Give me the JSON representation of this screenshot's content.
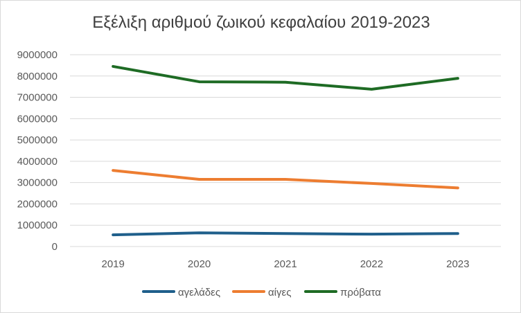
{
  "chart_data": {
    "type": "line",
    "title": "Εξέλιξη αριθμού ζωικού κεφαλαίου 2019-2023",
    "xlabel": "",
    "ylabel": "",
    "categories": [
      "2019",
      "2020",
      "2021",
      "2022",
      "2023"
    ],
    "ylim": [
      0,
      9000000
    ],
    "yticks": [
      0,
      1000000,
      2000000,
      3000000,
      4000000,
      5000000,
      6000000,
      7000000,
      8000000,
      9000000
    ],
    "ytick_labels": [
      "0",
      "1000000",
      "2000000",
      "3000000",
      "4000000",
      "5000000",
      "6000000",
      "7000000",
      "8000000",
      "9000000"
    ],
    "grid": true,
    "legend_position": "bottom",
    "series": [
      {
        "name": "αγελάδες",
        "color": "#1f5f8b",
        "values": [
          550000,
          640000,
          610000,
          580000,
          610000
        ]
      },
      {
        "name": "αίγες",
        "color": "#ed7d31",
        "values": [
          3570000,
          3150000,
          3150000,
          2960000,
          2750000
        ]
      },
      {
        "name": "πρόβατα",
        "color": "#1e6b24",
        "values": [
          8450000,
          7730000,
          7710000,
          7380000,
          7890000
        ]
      }
    ]
  }
}
